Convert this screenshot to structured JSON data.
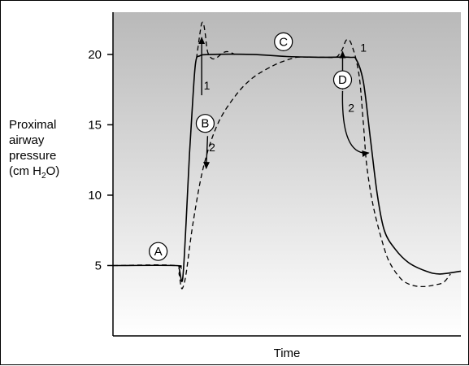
{
  "chart_data": {
    "type": "line",
    "title": "",
    "xlabel": "Time",
    "ylabel_lines": [
      "Proximal",
      "airway",
      "pressure"
    ],
    "ylabel_unit": {
      "prefix": "(cm H",
      "sub": "2",
      "suffix": "O)"
    },
    "ylim": [
      0,
      23
    ],
    "xlim": [
      0,
      100
    ],
    "yticks": [
      5,
      10,
      15,
      20
    ],
    "grid": false,
    "legend": "none",
    "background_gradient": [
      "#b9b9b9",
      "#ffffff"
    ],
    "series": [
      {
        "style": "solid",
        "points": [
          [
            0,
            5
          ],
          [
            18,
            5
          ],
          [
            19,
            4.8
          ],
          [
            20,
            4
          ],
          [
            21,
            8
          ],
          [
            22,
            13
          ],
          [
            23,
            17
          ],
          [
            23.8,
            19.5
          ],
          [
            25,
            19.9
          ],
          [
            28,
            20
          ],
          [
            40,
            20
          ],
          [
            50,
            19.85
          ],
          [
            60,
            19.8
          ],
          [
            68,
            19.8
          ],
          [
            70,
            19.6
          ],
          [
            72,
            18
          ],
          [
            74,
            14
          ],
          [
            76,
            10
          ],
          [
            78,
            7.5
          ],
          [
            81,
            6.2
          ],
          [
            85,
            5.2
          ],
          [
            90,
            4.6
          ],
          [
            94,
            4.4
          ],
          [
            100,
            4.6
          ]
        ]
      },
      {
        "style": "dashed",
        "points": [
          [
            0,
            5
          ],
          [
            18,
            5
          ],
          [
            19,
            4.4
          ],
          [
            19.5,
            3.6
          ],
          [
            20,
            3.4
          ],
          [
            21,
            4.4
          ],
          [
            23,
            8
          ],
          [
            26,
            12
          ],
          [
            30,
            15
          ],
          [
            35,
            17
          ],
          [
            40,
            18.3
          ],
          [
            46,
            19.2
          ],
          [
            50,
            19.6
          ],
          [
            53,
            19.8
          ],
          [
            57,
            19.8
          ],
          [
            61,
            19.8
          ],
          [
            64,
            19.8
          ],
          [
            65,
            20
          ],
          [
            66,
            20.4
          ],
          [
            67,
            21
          ],
          [
            68,
            21
          ],
          [
            69,
            20.4
          ],
          [
            70,
            19.5
          ],
          [
            71,
            18
          ],
          [
            72,
            15
          ],
          [
            73,
            12
          ],
          [
            75,
            9
          ],
          [
            78,
            6.2
          ],
          [
            80,
            5
          ],
          [
            83,
            4
          ],
          [
            86,
            3.6
          ],
          [
            89,
            3.5
          ],
          [
            92,
            3.6
          ],
          [
            95,
            3.8
          ],
          [
            97,
            4.4
          ]
        ]
      },
      {
        "style": "dashed",
        "points": [
          [
            24,
            19.7
          ],
          [
            25,
            21.5
          ],
          [
            25.5,
            22.2
          ],
          [
            26,
            22.2
          ],
          [
            26.5,
            21.5
          ],
          [
            27.2,
            20.2
          ],
          [
            28.5,
            19.7
          ],
          [
            30,
            19.8
          ],
          [
            31.5,
            20.1
          ],
          [
            33,
            20.2
          ],
          [
            35,
            20
          ]
        ]
      }
    ],
    "annotations": [
      {
        "label": "A",
        "x": 13,
        "y": 6
      },
      {
        "label": "B",
        "x": 26.5,
        "y": 15.1
      },
      {
        "label": "C",
        "x": 49,
        "y": 20.9
      },
      {
        "label": "D",
        "x": 66,
        "y": 18.2
      }
    ],
    "arrow_labels": [
      {
        "label": "1",
        "x": 27,
        "y": 17.8
      },
      {
        "label": "2",
        "x": 28.5,
        "y": 13.4
      },
      {
        "label": "1",
        "x": 72,
        "y": 20.5
      },
      {
        "label": "2",
        "x": 68.5,
        "y": 16.2
      }
    ],
    "arrows": [
      {
        "from": [
          25.5,
          17.1
        ],
        "to": [
          25.5,
          21.2
        ],
        "curved": false
      },
      {
        "from": [
          27.2,
          14.2
        ],
        "to": [
          26.8,
          11.9
        ],
        "curved": false
      },
      {
        "from": [
          66,
          17.5
        ],
        "to": [
          66,
          20.2
        ],
        "curved": false
      },
      {
        "from": [
          66,
          17.4
        ],
        "to": [
          73.5,
          13.0
        ],
        "curved": true
      }
    ]
  }
}
